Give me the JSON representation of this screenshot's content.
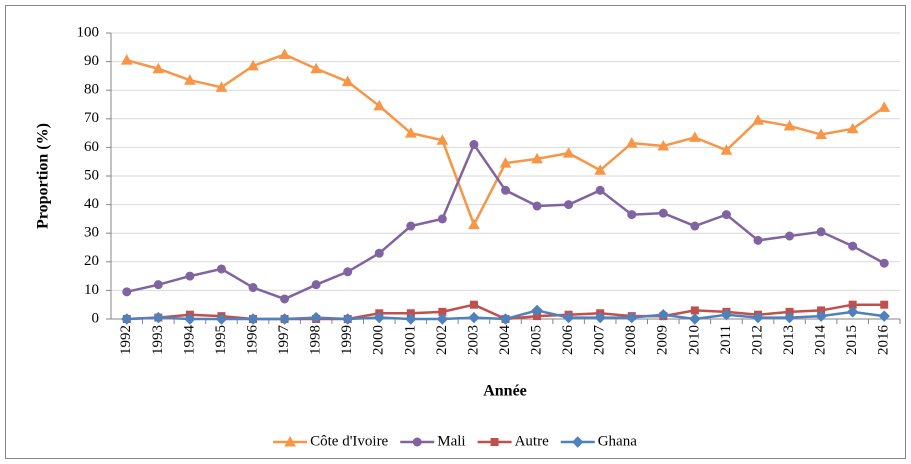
{
  "chart_data": {
    "type": "line",
    "xlabel": "Année",
    "ylabel": "Proportion (%)",
    "categories": [
      "1992",
      "1993",
      "1994",
      "1995",
      "1996",
      "1997",
      "1998",
      "1999",
      "2000",
      "2001",
      "2002",
      "2003",
      "2004",
      "2005",
      "2006",
      "2007",
      "2008",
      "2009",
      "2010",
      "2011",
      "2012",
      "2013",
      "2014",
      "2015",
      "2016"
    ],
    "series": [
      {
        "name": "Côte d'Ivoire",
        "color": "#f79646",
        "marker": "triangle",
        "values": [
          90.5,
          87.5,
          83.5,
          81,
          88.5,
          92.5,
          87.5,
          83,
          74.5,
          65,
          62.5,
          33,
          54.5,
          56,
          58,
          52,
          61.5,
          60.5,
          63.5,
          59,
          69.5,
          67.5,
          64.5,
          66.5,
          74
        ]
      },
      {
        "name": "Mali",
        "color": "#8064a2",
        "marker": "circle",
        "values": [
          9.5,
          12,
          15,
          17.5,
          11,
          7,
          12,
          16.5,
          23,
          32.5,
          35,
          61,
          45,
          39.5,
          40,
          45,
          36.5,
          37,
          32.5,
          36.5,
          27.5,
          29,
          30.5,
          25.5,
          19.5
        ]
      },
      {
        "name": "Autre",
        "color": "#c0504d",
        "marker": "square",
        "values": [
          0,
          0.5,
          1.5,
          1,
          0,
          0,
          0,
          0,
          2,
          2,
          2.5,
          5,
          0,
          1,
          1.5,
          2,
          1,
          1,
          3,
          2.5,
          1.5,
          2.5,
          3,
          5,
          5
        ]
      },
      {
        "name": "Ghana",
        "color": "#4f81bd",
        "marker": "diamond",
        "values": [
          0,
          0.5,
          0,
          0,
          0,
          0,
          0.5,
          0,
          0.5,
          0,
          0,
          0.5,
          0,
          3,
          0.5,
          0.5,
          0.5,
          1.5,
          0,
          1.5,
          0.5,
          0.5,
          1,
          2.5,
          1
        ]
      }
    ],
    "ylim": [
      0,
      100
    ],
    "yticks": [
      0,
      10,
      20,
      30,
      40,
      50,
      60,
      70,
      80,
      90,
      100
    ],
    "grid": true,
    "legend": "bottom"
  }
}
